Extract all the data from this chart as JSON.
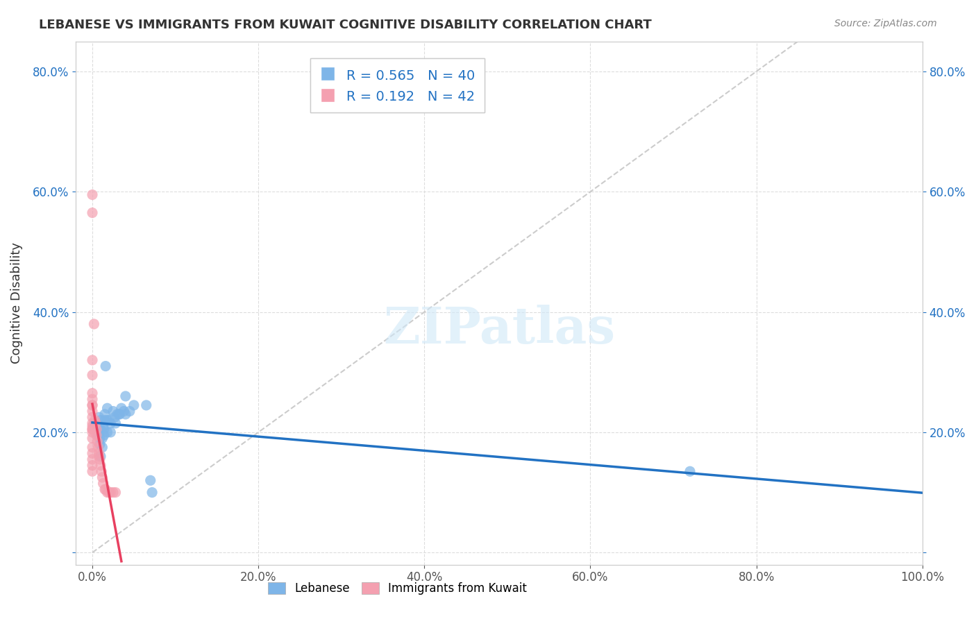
{
  "title": "LEBANESE VS IMMIGRANTS FROM KUWAIT COGNITIVE DISABILITY CORRELATION CHART",
  "source": "Source: ZipAtlas.com",
  "ylabel": "Cognitive Disability",
  "xlabel": "",
  "watermark": "ZIPatlas",
  "legend_blue_R": "0.565",
  "legend_blue_N": "40",
  "legend_pink_R": "0.192",
  "legend_pink_N": "42",
  "legend_label1": "Lebanese",
  "legend_label2": "Immigrants from Kuwait",
  "blue_color": "#7EB5E8",
  "pink_color": "#F4A0B0",
  "blue_line_color": "#2272C3",
  "pink_line_color": "#E84060",
  "diagonal_color": "#CCCCCC",
  "blue_scatter": [
    [
      0.003,
      0.215
    ],
    [
      0.005,
      0.215
    ],
    [
      0.007,
      0.195
    ],
    [
      0.008,
      0.21
    ],
    [
      0.008,
      0.225
    ],
    [
      0.009,
      0.18
    ],
    [
      0.009,
      0.19
    ],
    [
      0.01,
      0.205
    ],
    [
      0.01,
      0.22
    ],
    [
      0.01,
      0.16
    ],
    [
      0.012,
      0.175
    ],
    [
      0.012,
      0.19
    ],
    [
      0.013,
      0.21
    ],
    [
      0.014,
      0.195
    ],
    [
      0.014,
      0.205
    ],
    [
      0.015,
      0.22
    ],
    [
      0.015,
      0.23
    ],
    [
      0.016,
      0.31
    ],
    [
      0.018,
      0.24
    ],
    [
      0.018,
      0.22
    ],
    [
      0.018,
      0.2
    ],
    [
      0.02,
      0.22
    ],
    [
      0.022,
      0.215
    ],
    [
      0.022,
      0.2
    ],
    [
      0.025,
      0.235
    ],
    [
      0.027,
      0.225
    ],
    [
      0.028,
      0.215
    ],
    [
      0.03,
      0.23
    ],
    [
      0.032,
      0.23
    ],
    [
      0.033,
      0.23
    ],
    [
      0.035,
      0.24
    ],
    [
      0.038,
      0.235
    ],
    [
      0.04,
      0.26
    ],
    [
      0.04,
      0.23
    ],
    [
      0.045,
      0.235
    ],
    [
      0.05,
      0.245
    ],
    [
      0.065,
      0.245
    ],
    [
      0.07,
      0.12
    ],
    [
      0.072,
      0.1
    ],
    [
      0.72,
      0.135
    ]
  ],
  "pink_scatter": [
    [
      0.0,
      0.595
    ],
    [
      0.0,
      0.565
    ],
    [
      0.0,
      0.32
    ],
    [
      0.0,
      0.295
    ],
    [
      0.0,
      0.265
    ],
    [
      0.0,
      0.255
    ],
    [
      0.0,
      0.245
    ],
    [
      0.0,
      0.245
    ],
    [
      0.0,
      0.235
    ],
    [
      0.0,
      0.225
    ],
    [
      0.0,
      0.215
    ],
    [
      0.0,
      0.21
    ],
    [
      0.0,
      0.205
    ],
    [
      0.0,
      0.205
    ],
    [
      0.0,
      0.2
    ],
    [
      0.0,
      0.19
    ],
    [
      0.0,
      0.175
    ],
    [
      0.0,
      0.165
    ],
    [
      0.0,
      0.155
    ],
    [
      0.0,
      0.145
    ],
    [
      0.0,
      0.135
    ],
    [
      0.002,
      0.38
    ],
    [
      0.003,
      0.22
    ],
    [
      0.004,
      0.215
    ],
    [
      0.005,
      0.205
    ],
    [
      0.005,
      0.195
    ],
    [
      0.006,
      0.185
    ],
    [
      0.007,
      0.175
    ],
    [
      0.008,
      0.165
    ],
    [
      0.008,
      0.16
    ],
    [
      0.009,
      0.155
    ],
    [
      0.01,
      0.145
    ],
    [
      0.011,
      0.135
    ],
    [
      0.012,
      0.125
    ],
    [
      0.013,
      0.115
    ],
    [
      0.015,
      0.105
    ],
    [
      0.016,
      0.105
    ],
    [
      0.018,
      0.1
    ],
    [
      0.02,
      0.1
    ],
    [
      0.022,
      0.1
    ],
    [
      0.025,
      0.1
    ],
    [
      0.028,
      0.1
    ]
  ],
  "xlim": [
    -0.02,
    1.0
  ],
  "ylim": [
    -0.02,
    0.85
  ],
  "xticks": [
    0.0,
    0.2,
    0.4,
    0.6,
    0.8,
    1.0
  ],
  "yticks": [
    0.0,
    0.2,
    0.4,
    0.6,
    0.8
  ],
  "xtick_labels": [
    "0.0%",
    "20.0%",
    "40.0%",
    "60.0%",
    "80.0%",
    "100.0%"
  ],
  "ytick_labels_left": [
    "",
    "20.0%",
    "40.0%",
    "60.0%",
    "80.0%"
  ],
  "ytick_labels_right": [
    "",
    "20.0%",
    "40.0%",
    "60.0%",
    "80.0%"
  ],
  "background_color": "#FFFFFF",
  "grid_color": "#DDDDDD",
  "axis_color": "#CCCCCC"
}
